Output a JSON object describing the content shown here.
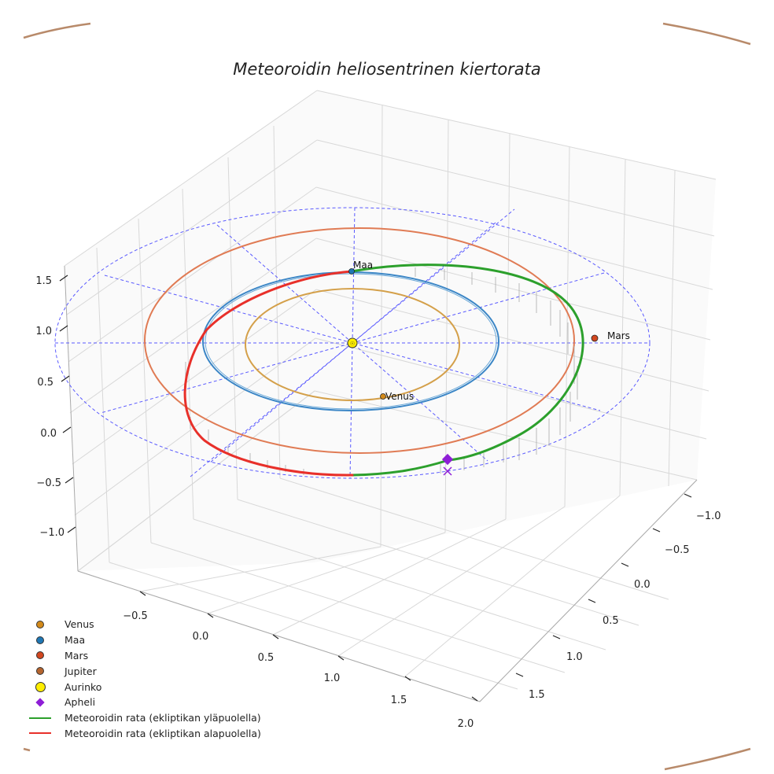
{
  "chart_data": {
    "type": "line",
    "title": "Meteoroidin heliosentrinen kiertorata",
    "projection": "3d",
    "x_ticks": [
      "−0.5",
      "0.0",
      "0.5",
      "1.0",
      "1.5",
      "2.0"
    ],
    "y_ticks": [
      "−1.0",
      "−0.5",
      "0.0",
      "0.5",
      "1.0",
      "1.5"
    ],
    "z_ticks": [
      "−1.0",
      "−0.5",
      "0.0",
      "0.5",
      "1.0",
      "1.5"
    ],
    "grid": true,
    "legend_position": "lower-left",
    "bodies": [
      {
        "name": "Venus",
        "label": "Venus",
        "orbit_radius": 0.72,
        "color": "#d4a04a",
        "marker_color": "#d38a1a"
      },
      {
        "name": "Maa",
        "label": "Maa",
        "orbit_radius": 1.0,
        "color": "#3b86c6",
        "marker_color": "#1f77b4"
      },
      {
        "name": "Mars",
        "label": "Mars",
        "orbit_radius": 1.52,
        "color": "#e07b54",
        "marker_color": "#d2471f"
      },
      {
        "name": "Jupiter",
        "label": "",
        "color": "#b88a6a",
        "marker_color": "#b5652f"
      },
      {
        "name": "Aurinko",
        "label": "",
        "color": "#ffee00"
      }
    ],
    "series": [
      {
        "name": "Meteoroidin rata (ekliptikan yläpuolella)",
        "color": "#2ca02c"
      },
      {
        "name": "Meteoroidin rata (ekliptikan alapuolella)",
        "color": "#e8302a"
      }
    ],
    "aphelion": {
      "name": "Apheli",
      "color": "#8e1ed6"
    },
    "legend": [
      {
        "label": "Venus",
        "kind": "dot",
        "color": "#d38a1a"
      },
      {
        "label": "Maa",
        "kind": "dot",
        "color": "#1f77b4"
      },
      {
        "label": "Mars",
        "kind": "dot",
        "color": "#d2471f"
      },
      {
        "label": "Jupiter",
        "kind": "dot",
        "color": "#b5652f"
      },
      {
        "label": "Aurinko",
        "kind": "bigdot",
        "color": "#ffee00"
      },
      {
        "label": "Apheli",
        "kind": "diamond",
        "color": "#8e1ed6"
      },
      {
        "label": "Meteoroidin rata (ekliptikan yläpuolella)",
        "kind": "line",
        "color": "#2ca02c"
      },
      {
        "label": "Meteoroidin rata (ekliptikan alapuolella)",
        "kind": "line",
        "color": "#e8302a"
      }
    ]
  }
}
